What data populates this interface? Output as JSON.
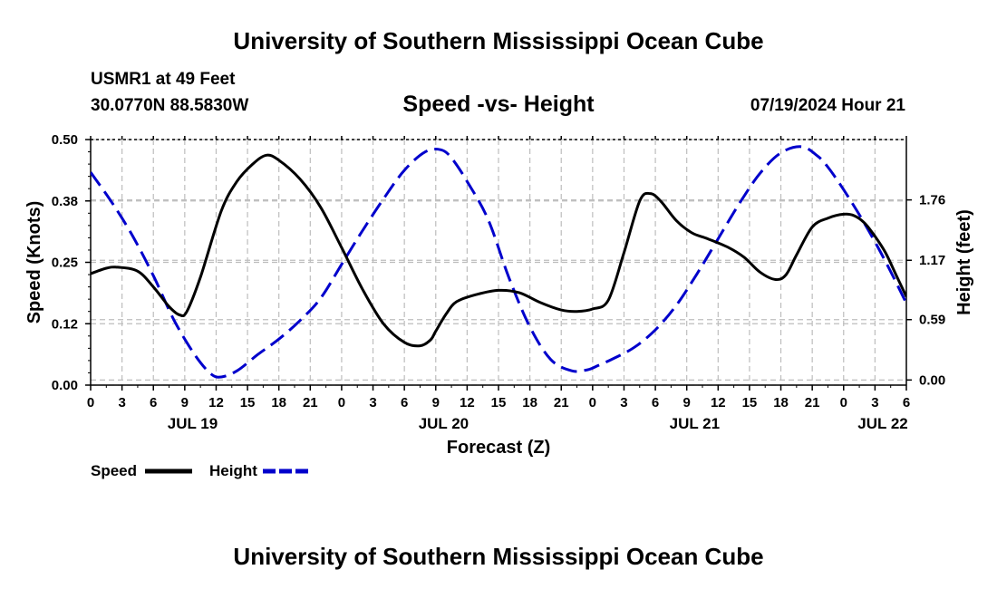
{
  "header": {
    "title": "University of Southern Mississippi Ocean Cube",
    "station": "USMR1 at 49 Feet",
    "coords": "30.0770N  88.5830W",
    "datetime": "07/19/2024 Hour 21",
    "footer_title": "University of Southern Mississippi Ocean Cube"
  },
  "chart_data": {
    "type": "line",
    "title": "Speed -vs- Height",
    "xlabel": "Forecast (Z)",
    "ylabel": "Speed (Knots)",
    "y2label": "Height (feet)",
    "x_unit": "hours since 00Z JUL 19",
    "xlim": [
      0,
      78
    ],
    "ylim": [
      0,
      0.5
    ],
    "y2lim": [
      -0.05,
      2.35
    ],
    "x_ticks": [
      0,
      3,
      6,
      9,
      12,
      15,
      18,
      21,
      24,
      27,
      30,
      33,
      36,
      39,
      42,
      45,
      48,
      51,
      54,
      57,
      60,
      63,
      66,
      69,
      72,
      75,
      78
    ],
    "x_tick_labels": [
      "0",
      "3",
      "6",
      "9",
      "12",
      "15",
      "18",
      "21",
      "0",
      "3",
      "6",
      "9",
      "12",
      "15",
      "18",
      "21",
      "0",
      "3",
      "6",
      "9",
      "12",
      "15",
      "18",
      "21",
      "0",
      "3",
      "6"
    ],
    "date_labels": [
      {
        "label": "JUL 19",
        "x": 9.75
      },
      {
        "label": "JUL 20",
        "x": 33.75
      },
      {
        "label": "JUL 21",
        "x": 57.75
      },
      {
        "label": "JUL 22",
        "x": 75.75
      }
    ],
    "y_ticks": [
      0,
      0.125,
      0.25,
      0.375,
      0.5
    ],
    "y_tick_labels": [
      "0.00",
      "0.12",
      "0.25",
      "0.38",
      "0.50"
    ],
    "y2_ticks": [
      0,
      0.59,
      1.17,
      1.76
    ],
    "y2_tick_labels": [
      "0.00",
      "0.59",
      "1.17",
      "1.76"
    ],
    "grid": true,
    "series": [
      {
        "name": "Speed",
        "axis": "left",
        "color": "#000000",
        "style": "solid",
        "x": [
          0,
          1.5,
          2.6,
          4.5,
          6,
          7.5,
          8.5,
          9.2,
          10.5,
          12.5,
          14,
          15.5,
          16.8,
          18,
          20,
          22,
          24,
          26,
          28,
          30,
          31.5,
          32.5,
          33,
          34,
          35,
          37,
          39,
          41,
          43,
          45,
          46.5,
          48,
          49.5,
          51,
          52.5,
          53.5,
          54.5,
          56,
          57.5,
          59,
          61,
          62.5,
          64,
          65.5,
          66.5,
          67.5,
          69,
          70.5,
          72,
          73,
          74,
          75,
          76,
          77,
          78
        ],
        "y": [
          0.227,
          0.238,
          0.24,
          0.232,
          0.2,
          0.16,
          0.143,
          0.15,
          0.22,
          0.355,
          0.415,
          0.45,
          0.468,
          0.458,
          0.42,
          0.362,
          0.28,
          0.195,
          0.125,
          0.087,
          0.08,
          0.092,
          0.11,
          0.145,
          0.17,
          0.185,
          0.193,
          0.188,
          0.168,
          0.153,
          0.15,
          0.155,
          0.173,
          0.27,
          0.375,
          0.39,
          0.375,
          0.335,
          0.31,
          0.298,
          0.28,
          0.26,
          0.23,
          0.215,
          0.225,
          0.265,
          0.322,
          0.34,
          0.348,
          0.345,
          0.33,
          0.303,
          0.27,
          0.225,
          0.18
        ]
      },
      {
        "name": "Height",
        "axis": "right",
        "color": "#0000cc",
        "style": "dashed",
        "x": [
          0,
          2,
          4,
          6,
          8,
          10,
          11.5,
          12.5,
          14,
          16,
          18,
          20,
          22,
          24,
          26,
          28,
          30,
          32,
          33.5,
          34.5,
          36,
          38,
          40,
          42,
          44,
          46,
          47.5,
          48.5,
          50,
          52,
          54,
          56,
          58,
          60,
          62,
          64,
          66,
          68,
          69.5,
          70.5,
          72,
          74,
          76,
          78
        ],
        "y": [
          2.03,
          1.74,
          1.41,
          1.02,
          0.58,
          0.24,
          0.06,
          0.03,
          0.09,
          0.25,
          0.4,
          0.58,
          0.8,
          1.13,
          1.46,
          1.77,
          2.05,
          2.23,
          2.25,
          2.17,
          1.94,
          1.57,
          1.0,
          0.52,
          0.2,
          0.09,
          0.1,
          0.14,
          0.21,
          0.32,
          0.49,
          0.73,
          1.04,
          1.38,
          1.72,
          2.02,
          2.22,
          2.28,
          2.19,
          2.08,
          1.86,
          1.53,
          1.16,
          0.75
        ]
      }
    ],
    "legend": [
      {
        "label": "Speed",
        "color": "#000000",
        "style": "solid"
      },
      {
        "label": "Height",
        "color": "#0000cc",
        "style": "dashed"
      }
    ],
    "legend_position": "bottom-left"
  }
}
